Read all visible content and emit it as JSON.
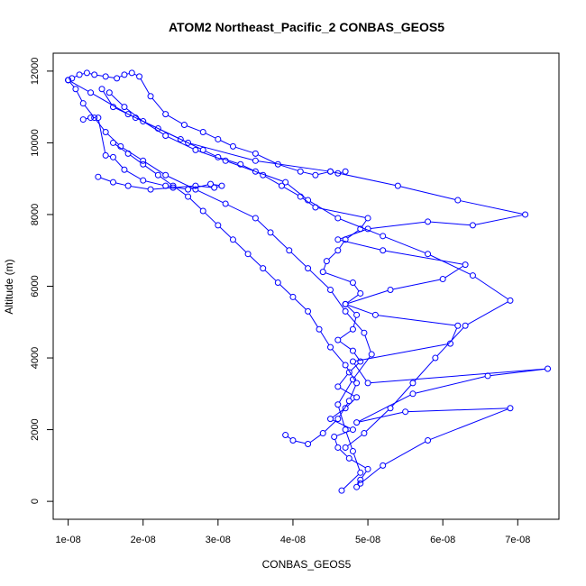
{
  "chart_data": {
    "type": "line",
    "title": "ATOM2 Northeast_Pacific_2 CONBAS_GEOS5",
    "xlabel": "CONBAS_GEOS5",
    "ylabel": "Altitude (m)",
    "xlim": [
      8e-09,
      7.55e-08
    ],
    "ylim": [
      -500,
      12500
    ],
    "x_ticks": [
      1e-08,
      2e-08,
      3e-08,
      4e-08,
      5e-08,
      6e-08,
      7e-08
    ],
    "x_tick_labels": [
      "1e-08",
      "2e-08",
      "3e-08",
      "4e-08",
      "5e-08",
      "6e-08",
      "7e-08"
    ],
    "y_ticks": [
      0,
      2000,
      4000,
      6000,
      8000,
      10000,
      12000
    ],
    "y_tick_labels": [
      "0",
      "2000",
      "4000",
      "6000",
      "8000",
      "10000",
      "12000"
    ],
    "marker": "open-circle",
    "color": "#0000ff",
    "series": [
      {
        "x": [
          4.85e-08,
          4.9e-08,
          5e-08,
          4.75e-08,
          4.6e-08,
          4.55e-08,
          4.8e-08,
          4.5e-08,
          4.7e-08,
          4.85e-08,
          4.6e-08,
          4.75e-08,
          4.9e-08,
          4.8e-08,
          4.6e-08,
          4.8e-08,
          4.85e-08,
          4.7e-08,
          4.9e-08,
          4.8e-08,
          4.4e-08,
          4.45e-08,
          4.6e-08,
          4.7e-08,
          4.9e-08,
          5e-08,
          4.3e-08,
          4.1e-08,
          3.85e-08,
          3.6e-08,
          3.3e-08,
          3e-08,
          2.8e-08,
          2.5e-08,
          2.2e-08,
          1.9e-08,
          1.6e-08,
          1.45e-08
        ],
        "y": [
          400,
          600,
          900,
          1200,
          1500,
          1800,
          2000,
          2300,
          2600,
          2900,
          3200,
          3600,
          3900,
          4200,
          4500,
          4800,
          5200,
          5500,
          5800,
          6100,
          6400,
          6700,
          7000,
          7300,
          7600,
          7900,
          8200,
          8500,
          8800,
          9100,
          9400,
          9600,
          9800,
          10100,
          10400,
          10700,
          11000,
          11500
        ]
      },
      {
        "x": [
          4.9e-08,
          5.2e-08,
          5.8e-08,
          6.9e-08,
          5.5e-08,
          4.85e-08,
          5.6e-08,
          6.6e-08,
          7.4e-08,
          5e-08,
          4.8e-08,
          6.1e-08,
          6.2e-08,
          5.1e-08,
          4.7e-08,
          5.3e-08,
          6e-08,
          6.3e-08,
          5.2e-08,
          4.6e-08,
          5e-08,
          5.8e-08,
          6.4e-08,
          7.1e-08,
          6.2e-08,
          5.4e-08,
          4.5e-08,
          3.5e-08,
          2.6e-08,
          1.8e-08,
          1.3e-08,
          1e-08
        ],
        "y": [
          500,
          1000,
          1700,
          2600,
          2500,
          2200,
          3000,
          3500,
          3700,
          3300,
          3900,
          4400,
          4900,
          5200,
          5500,
          5900,
          6200,
          6600,
          7000,
          7300,
          7600,
          7800,
          7700,
          8000,
          8400,
          8800,
          9200,
          9500,
          10000,
          10800,
          11400,
          11750
        ]
      },
      {
        "x": [
          4.65e-08,
          4.9e-08,
          4.8e-08,
          4.7e-08,
          4.6e-08,
          4.8e-08,
          5.05e-08,
          4.95e-08,
          4.7e-08,
          4.5e-08,
          4.2e-08,
          3.95e-08,
          3.7e-08,
          3.5e-08,
          3.1e-08,
          2.7e-08,
          2.3e-08,
          2e-08,
          1.7e-08,
          1.5e-08,
          1.35e-08,
          1.2e-08,
          1.1e-08,
          1e-08
        ],
        "y": [
          300,
          800,
          1400,
          2000,
          2700,
          3400,
          4100,
          4700,
          5300,
          5900,
          6500,
          7000,
          7500,
          7900,
          8300,
          8700,
          9100,
          9500,
          9900,
          10300,
          10700,
          11100,
          11500,
          11750
        ]
      },
      {
        "x": [
          3.9e-08,
          4e-08,
          4.2e-08,
          4.4e-08,
          4.6e-08,
          4.75e-08,
          4.85e-08,
          4.7e-08,
          4.5e-08,
          4.35e-08,
          4.2e-08,
          4e-08,
          3.8e-08,
          3.6e-08,
          3.4e-08,
          3.2e-08,
          3e-08,
          2.8e-08,
          2.6e-08,
          2.4e-08,
          2.2e-08,
          2e-08,
          1.8e-08,
          1.6e-08
        ],
        "y": [
          1850,
          1700,
          1600,
          1900,
          2300,
          2800,
          3300,
          3800,
          4300,
          4800,
          5300,
          5700,
          6100,
          6500,
          6900,
          7300,
          7700,
          8100,
          8500,
          8800,
          9100,
          9400,
          9700,
          10000
        ]
      },
      {
        "x": [
          4.7e-08,
          4.95e-08,
          5.3e-08,
          5.6e-08,
          5.9e-08,
          6.3e-08,
          6.9e-08,
          6.4e-08,
          5.8e-08,
          5.2e-08,
          4.6e-08,
          4.2e-08,
          3.9e-08,
          3.5e-08,
          3.1e-08,
          2.7e-08,
          2.3e-08,
          2e-08,
          1.75e-08,
          1.55e-08
        ],
        "y": [
          1500,
          1900,
          2600,
          3300,
          4000,
          4900,
          5600,
          6300,
          6900,
          7400,
          7900,
          8400,
          8900,
          9200,
          9500,
          9800,
          10200,
          10600,
          11000,
          11400
        ]
      },
      {
        "x": [
          1e-08,
          1.05e-08,
          1.15e-08,
          1.25e-08,
          1.35e-08,
          1.5e-08,
          1.65e-08,
          1.75e-08,
          1.85e-08,
          1.95e-08,
          2.1e-08,
          2.3e-08,
          2.55e-08,
          2.8e-08,
          3e-08,
          3.2e-08,
          3.5e-08,
          3.8e-08,
          4.1e-08,
          4.3e-08,
          4.5e-08,
          4.6e-08,
          4.7e-08
        ],
        "y": [
          11750,
          11800,
          11900,
          11950,
          11900,
          11850,
          11800,
          11900,
          11950,
          11850,
          11300,
          10800,
          10500,
          10300,
          10100,
          9900,
          9700,
          9400,
          9200,
          9100,
          9200,
          9150,
          9200
        ]
      },
      {
        "x": [
          1.4e-08,
          1.6e-08,
          1.8e-08,
          2.1e-08,
          2.4e-08,
          2.7e-08,
          2.95e-08,
          3.05e-08,
          2.9e-08,
          2.6e-08,
          2.3e-08,
          2e-08,
          1.75e-08,
          1.6e-08,
          1.5e-08,
          1.4e-08,
          1.3e-08,
          1.2e-08
        ],
        "y": [
          9050,
          8900,
          8800,
          8700,
          8750,
          8800,
          8750,
          8800,
          8850,
          8700,
          8800,
          8950,
          9250,
          9600,
          9650,
          10700,
          10700,
          10650
        ]
      }
    ]
  }
}
